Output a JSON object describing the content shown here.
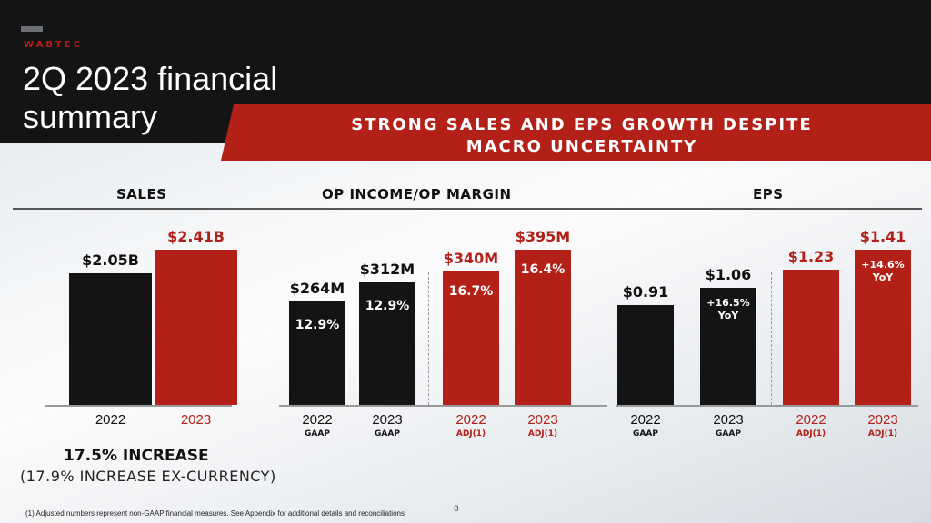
{
  "header": {
    "brand": "WABTEC",
    "title_line1": "2Q 2023 financial",
    "title_line2": "summary",
    "banner_line1": "STRONG SALES AND EPS GROWTH DESPITE",
    "banner_line2": "MACRO UNCERTAINTY"
  },
  "colors": {
    "red": "#b22017",
    "black": "#141414"
  },
  "chart_data": [
    {
      "type": "bar",
      "title": "SALES",
      "categories": [
        "2022",
        "2023"
      ],
      "values": [
        2.05,
        2.41
      ],
      "value_labels": [
        "$2.05B",
        "$2.41B"
      ],
      "sublabels": [
        "",
        ""
      ],
      "inner_labels": [
        "",
        ""
      ],
      "colors": [
        "#141414",
        "#b22017"
      ]
    },
    {
      "type": "bar",
      "title": "OP INCOME/OP MARGIN",
      "categories": [
        "2022",
        "2023",
        "2022",
        "2023"
      ],
      "values": [
        264,
        312,
        340,
        395
      ],
      "value_labels": [
        "$264M",
        "$312M",
        "$340M",
        "$395M"
      ],
      "sublabels": [
        "GAAP",
        "GAAP",
        "ADJ(1)",
        "ADJ(1)"
      ],
      "inner_labels": [
        "12.9%",
        "12.9%",
        "16.7%",
        "16.4%"
      ],
      "colors": [
        "#141414",
        "#141414",
        "#b22017",
        "#b22017"
      ]
    },
    {
      "type": "bar",
      "title": "EPS",
      "categories": [
        "2022",
        "2023",
        "2022",
        "2023"
      ],
      "values": [
        0.91,
        1.06,
        1.23,
        1.41
      ],
      "value_labels": [
        "$0.91",
        "$1.06",
        "$1.23",
        "$1.41"
      ],
      "sublabels": [
        "GAAP",
        "GAAP",
        "ADJ(1)",
        "ADJ(1)"
      ],
      "inner_labels": [
        "",
        "+16.5% YoY",
        "",
        "+14.6% YoY"
      ],
      "colors": [
        "#141414",
        "#141414",
        "#b22017",
        "#b22017"
      ]
    }
  ],
  "sales_summary": {
    "increase": "17.5% INCREASE",
    "ex_currency": "(17.9% INCREASE EX-CURRENCY)"
  },
  "footnote": "(1)   Adjusted numbers represent non-GAAP financial measures.  See Appendix for additional details and reconciliations",
  "page_number": "8"
}
